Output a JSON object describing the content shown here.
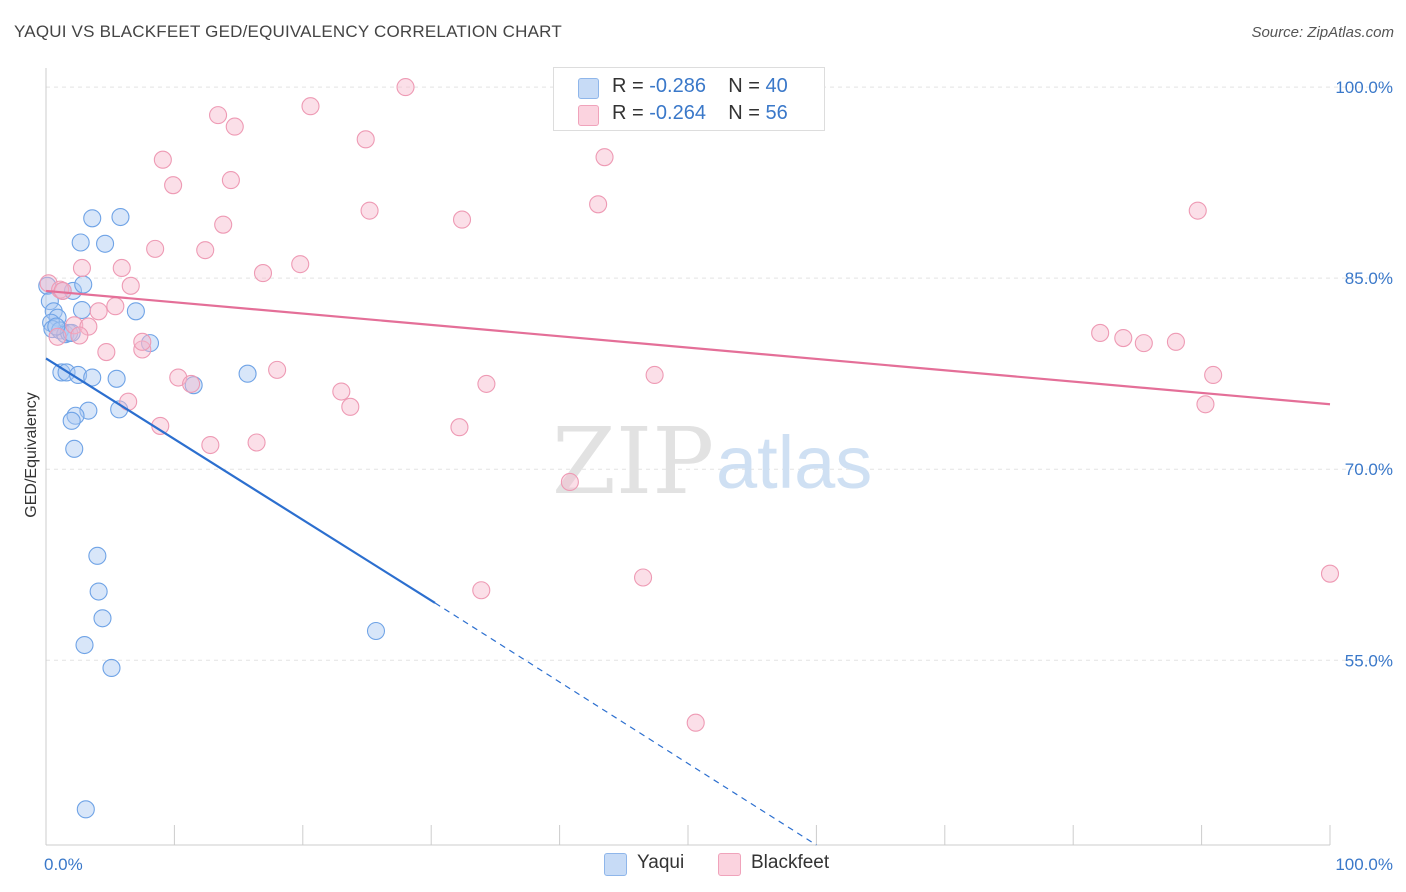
{
  "title": "YAQUI VS BLACKFEET GED/EQUIVALENCY CORRELATION CHART",
  "source": "Source: ZipAtlas.com",
  "watermark": {
    "zip": "ZIP",
    "atlas": "atlas"
  },
  "legend": {
    "r_label": "R =",
    "n_label": "N =",
    "rows": [
      {
        "series": "Yaqui",
        "r": "-0.286",
        "n": "40",
        "color": "#a9c8f2"
      },
      {
        "series": "Blackfeet",
        "r": "-0.264",
        "n": "56",
        "color": "#f7b8cb"
      }
    ]
  },
  "bottom_legend": [
    {
      "label": "Yaqui",
      "color": "#a9c8f2"
    },
    {
      "label": "Blackfeet",
      "color": "#f7b8cb"
    }
  ],
  "chart_data": {
    "type": "scatter",
    "title": "YAQUI VS BLACKFEET GED/EQUIVALENCY CORRELATION CHART",
    "xlabel": "",
    "ylabel": "GED/Equivalency",
    "xlim": [
      0,
      100
    ],
    "ylim": [
      40.5,
      101.5
    ],
    "x_tick_labels": [
      {
        "value": 0,
        "label": "0.0%"
      },
      {
        "value": 100,
        "label": "100.0%"
      }
    ],
    "y_tick_labels": [
      {
        "value": 100,
        "label": "100.0%"
      },
      {
        "value": 85,
        "label": "85.0%"
      },
      {
        "value": 70,
        "label": "70.0%"
      },
      {
        "value": 55,
        "label": "55.0%"
      }
    ],
    "grid": true,
    "legend_position": "top-center",
    "series": [
      {
        "name": "Yaqui",
        "color": "#6fa3e6",
        "fill": "#a9c8f2",
        "points": [
          {
            "x": 0.1,
            "y": 84.4
          },
          {
            "x": 0.3,
            "y": 83.2
          },
          {
            "x": 0.6,
            "y": 82.4
          },
          {
            "x": 0.9,
            "y": 81.9
          },
          {
            "x": 0.4,
            "y": 81.5
          },
          {
            "x": 0.5,
            "y": 81.0
          },
          {
            "x": 1.1,
            "y": 80.9
          },
          {
            "x": 1.5,
            "y": 80.6
          },
          {
            "x": 1.8,
            "y": 80.7
          },
          {
            "x": 2.0,
            "y": 80.7
          },
          {
            "x": 1.3,
            "y": 84.0
          },
          {
            "x": 2.1,
            "y": 84.0
          },
          {
            "x": 2.9,
            "y": 84.5
          },
          {
            "x": 2.8,
            "y": 82.5
          },
          {
            "x": 3.6,
            "y": 89.7
          },
          {
            "x": 5.8,
            "y": 89.8
          },
          {
            "x": 2.7,
            "y": 87.8
          },
          {
            "x": 4.6,
            "y": 87.7
          },
          {
            "x": 7.0,
            "y": 82.4
          },
          {
            "x": 8.1,
            "y": 79.9
          },
          {
            "x": 1.2,
            "y": 77.6
          },
          {
            "x": 1.6,
            "y": 77.6
          },
          {
            "x": 2.5,
            "y": 77.4
          },
          {
            "x": 3.6,
            "y": 77.2
          },
          {
            "x": 5.5,
            "y": 77.1
          },
          {
            "x": 11.5,
            "y": 76.6
          },
          {
            "x": 15.7,
            "y": 77.5
          },
          {
            "x": 3.3,
            "y": 74.6
          },
          {
            "x": 5.7,
            "y": 74.7
          },
          {
            "x": 2.3,
            "y": 74.2
          },
          {
            "x": 2.0,
            "y": 73.8
          },
          {
            "x": 2.2,
            "y": 71.6
          },
          {
            "x": 4.0,
            "y": 63.2
          },
          {
            "x": 4.1,
            "y": 60.4
          },
          {
            "x": 4.4,
            "y": 58.3
          },
          {
            "x": 3.0,
            "y": 56.2
          },
          {
            "x": 5.1,
            "y": 54.4
          },
          {
            "x": 25.7,
            "y": 57.3
          },
          {
            "x": 3.1,
            "y": 43.3
          },
          {
            "x": 0.8,
            "y": 81.2
          }
        ]
      },
      {
        "name": "Blackfeet",
        "color": "#ee9ab4",
        "fill": "#f7b8cb",
        "points": [
          {
            "x": 0.2,
            "y": 84.6
          },
          {
            "x": 1.1,
            "y": 84.1
          },
          {
            "x": 0.9,
            "y": 80.4
          },
          {
            "x": 2.2,
            "y": 81.3
          },
          {
            "x": 3.3,
            "y": 81.2
          },
          {
            "x": 4.1,
            "y": 82.4
          },
          {
            "x": 5.4,
            "y": 82.8
          },
          {
            "x": 4.7,
            "y": 79.2
          },
          {
            "x": 7.5,
            "y": 79.4
          },
          {
            "x": 7.5,
            "y": 80.0
          },
          {
            "x": 2.8,
            "y": 85.8
          },
          {
            "x": 5.9,
            "y": 85.8
          },
          {
            "x": 6.6,
            "y": 84.4
          },
          {
            "x": 8.5,
            "y": 87.3
          },
          {
            "x": 9.1,
            "y": 94.3
          },
          {
            "x": 9.9,
            "y": 92.3
          },
          {
            "x": 13.4,
            "y": 97.8
          },
          {
            "x": 14.7,
            "y": 96.9
          },
          {
            "x": 14.4,
            "y": 92.7
          },
          {
            "x": 13.8,
            "y": 89.2
          },
          {
            "x": 12.4,
            "y": 87.2
          },
          {
            "x": 16.9,
            "y": 85.4
          },
          {
            "x": 19.8,
            "y": 86.1
          },
          {
            "x": 20.6,
            "y": 98.5
          },
          {
            "x": 28.0,
            "y": 100.0
          },
          {
            "x": 24.9,
            "y": 95.9
          },
          {
            "x": 25.2,
            "y": 90.3
          },
          {
            "x": 32.4,
            "y": 89.6
          },
          {
            "x": 43.0,
            "y": 90.8
          },
          {
            "x": 43.5,
            "y": 94.5
          },
          {
            "x": 10.3,
            "y": 77.2
          },
          {
            "x": 11.3,
            "y": 76.7
          },
          {
            "x": 18.0,
            "y": 77.8
          },
          {
            "x": 23.0,
            "y": 76.1
          },
          {
            "x": 23.7,
            "y": 74.9
          },
          {
            "x": 34.3,
            "y": 76.7
          },
          {
            "x": 47.4,
            "y": 77.4
          },
          {
            "x": 6.4,
            "y": 75.3
          },
          {
            "x": 8.9,
            "y": 73.4
          },
          {
            "x": 12.8,
            "y": 71.9
          },
          {
            "x": 16.4,
            "y": 72.1
          },
          {
            "x": 32.2,
            "y": 73.3
          },
          {
            "x": 40.8,
            "y": 69.0
          },
          {
            "x": 33.9,
            "y": 60.5
          },
          {
            "x": 46.5,
            "y": 61.5
          },
          {
            "x": 50.6,
            "y": 50.1
          },
          {
            "x": 82.1,
            "y": 80.7
          },
          {
            "x": 83.9,
            "y": 80.3
          },
          {
            "x": 85.5,
            "y": 79.9
          },
          {
            "x": 88.0,
            "y": 80.0
          },
          {
            "x": 90.9,
            "y": 77.4
          },
          {
            "x": 90.3,
            "y": 75.1
          },
          {
            "x": 89.7,
            "y": 90.3
          },
          {
            "x": 100.0,
            "y": 61.8
          },
          {
            "x": 1.3,
            "y": 84.0
          },
          {
            "x": 2.6,
            "y": 80.5
          }
        ]
      }
    ],
    "trend_lines": [
      {
        "series": "Yaqui",
        "color": "#2c6fcf",
        "x0": 0,
        "y0": 78.7,
        "x1": 30.3,
        "y1": 59.5,
        "dashed_to_x": 60,
        "dashed_to_y": 40.5
      },
      {
        "series": "Blackfeet",
        "color": "#e46f98",
        "x0": 0,
        "y0": 84.0,
        "x1": 100,
        "y1": 75.1
      }
    ]
  }
}
